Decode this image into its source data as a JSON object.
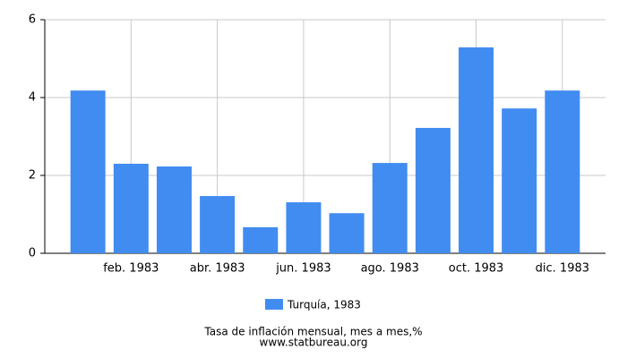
{
  "chart_data": {
    "type": "bar",
    "title": "Tasa de inflación mensual, mes a mes,%",
    "source": "www.statbureau.org",
    "categories": [
      null,
      "feb. 1983",
      null,
      "abr. 1983",
      null,
      "jun. 1983",
      null,
      "ago. 1983",
      null,
      "oct. 1983",
      null,
      "dic. 1983"
    ],
    "series": [
      {
        "name": "Turquía, 1983",
        "color": "#418cf0",
        "values": [
          4.18,
          2.3,
          2.23,
          1.47,
          0.67,
          1.31,
          1.03,
          2.32,
          3.22,
          5.29,
          3.72,
          4.18
        ]
      }
    ],
    "ylim": [
      0,
      6
    ],
    "yticks": [
      0,
      2,
      4,
      6
    ],
    "grid": true
  }
}
